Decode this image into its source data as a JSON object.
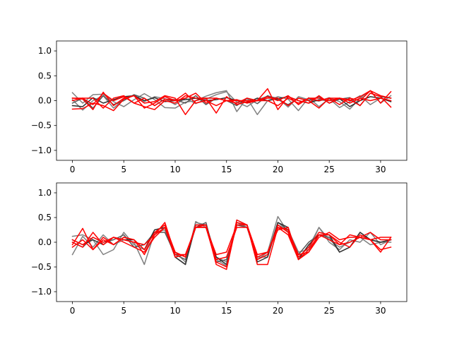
{
  "chart_data": [
    {
      "type": "line",
      "title": "",
      "xlabel": "",
      "ylabel": "",
      "xlim": [
        -1.55,
        32.55
      ],
      "ylim": [
        -1.2,
        1.2
      ],
      "xticks": [
        0,
        5,
        10,
        15,
        20,
        25,
        30
      ],
      "yticks": [
        -1.0,
        -0.5,
        0.0,
        0.5,
        1.0
      ],
      "xtick_labels": [
        "0",
        "5",
        "10",
        "15",
        "20",
        "25",
        "30"
      ],
      "ytick_labels": [
        "−1.0",
        "−0.5",
        "0.0",
        "0.5",
        "1.0"
      ],
      "grid": false,
      "x": [
        0,
        1,
        2,
        3,
        4,
        5,
        6,
        7,
        8,
        9,
        10,
        11,
        12,
        13,
        14,
        15,
        16,
        17,
        18,
        19,
        20,
        21,
        22,
        23,
        24,
        25,
        26,
        27,
        28,
        29,
        30,
        31
      ],
      "series": [
        {
          "color": "#808080",
          "values": [
            0.16,
            -0.05,
            0.12,
            0.13,
            -0.02,
            -0.12,
            0.02,
            0.14,
            0.02,
            -0.14,
            -0.15,
            -0.03,
            0.0,
            0.09,
            0.16,
            0.2,
            -0.22,
            0.05,
            -0.28,
            0.0,
            0.08,
            0.03,
            -0.2,
            0.06,
            -0.12,
            0.04,
            -0.14,
            -0.02,
            0.1,
            -0.08,
            0.05,
            -0.01
          ]
        },
        {
          "color": "#808080",
          "values": [
            0.02,
            -0.19,
            0.0,
            0.1,
            -0.15,
            0.03,
            0.11,
            -0.02,
            0.08,
            0.04,
            -0.08,
            0.05,
            -0.06,
            0.03,
            0.12,
            0.18,
            -0.03,
            -0.12,
            0.02,
            0.09,
            0.05,
            -0.13,
            0.08,
            0.02,
            -0.01,
            0.06,
            -0.02,
            -0.17,
            0.05,
            0.2,
            -0.05,
            0.1
          ]
        },
        {
          "color": "#5a5a5a",
          "values": [
            -0.05,
            0.05,
            -0.15,
            0.1,
            -0.08,
            0.0,
            0.12,
            0.05,
            -0.1,
            0.03,
            0.02,
            -0.05,
            0.1,
            -0.08,
            0.05,
            0.0,
            -0.1,
            0.05,
            -0.06,
            0.1,
            0.02,
            -0.08,
            0.05,
            0.0,
            0.08,
            -0.05,
            0.03,
            0.06,
            -0.1,
            0.15,
            0.08,
            0.05
          ]
        },
        {
          "color": "#303030",
          "values": [
            -0.1,
            -0.12,
            0.06,
            -0.05,
            0.02,
            0.08,
            0.1,
            0.0,
            0.06,
            -0.02,
            0.0,
            0.02,
            0.05,
            0.0,
            0.02,
            0.06,
            0.0,
            -0.04,
            0.05,
            0.0,
            0.04,
            0.08,
            0.0,
            -0.05,
            0.02,
            0.0,
            0.04,
            -0.12,
            0.0,
            0.08,
            0.05,
            -0.02
          ]
        },
        {
          "color": "#ff0000",
          "values": [
            0.05,
            0.03,
            -0.18,
            0.17,
            -0.1,
            0.05,
            0.1,
            -0.15,
            -0.05,
            0.08,
            0.0,
            0.15,
            -0.05,
            0.0,
            -0.1,
            0.0,
            0.02,
            -0.05,
            0.0,
            0.24,
            -0.18,
            0.08,
            0.0,
            -0.05,
            0.1,
            -0.05,
            0.05,
            0.02,
            -0.1,
            0.15,
            0.08,
            -0.13
          ]
        },
        {
          "color": "#ff0000",
          "values": [
            -0.17,
            -0.16,
            -0.05,
            -0.1,
            -0.2,
            0.03,
            0.1,
            -0.05,
            -0.02,
            0.1,
            0.05,
            -0.28,
            0.0,
            0.05,
            -0.25,
            0.08,
            -0.08,
            -0.02,
            0.0,
            0.0,
            -0.1,
            0.05,
            -0.05,
            0.05,
            0.0,
            0.05,
            -0.08,
            0.05,
            0.0,
            0.2,
            -0.05,
            0.18
          ]
        },
        {
          "color": "#ff0000",
          "values": [
            0.0,
            0.05,
            -0.08,
            0.15,
            0.0,
            0.08,
            -0.05,
            0.05,
            -0.1,
            0.03,
            0.0,
            0.05,
            0.15,
            -0.05,
            0.05,
            0.0,
            -0.05,
            0.05,
            0.0,
            0.08,
            0.0,
            0.1,
            -0.08,
            0.05,
            0.05,
            0.0,
            0.05,
            0.0,
            0.08,
            0.2,
            0.1,
            0.05
          ]
        },
        {
          "color": "#ff0000",
          "values": [
            0.05,
            0.05,
            0.05,
            -0.15,
            0.05,
            0.1,
            -0.05,
            -0.12,
            -0.18,
            0.0,
            -0.05,
            0.1,
            0.05,
            0.05,
            0.05,
            0.0,
            0.0,
            0.0,
            0.0,
            0.05,
            0.05,
            -0.1,
            0.05,
            0.0,
            -0.15,
            0.05,
            0.05,
            -0.05,
            0.05,
            0.0,
            0.05,
            0.0
          ]
        }
      ]
    },
    {
      "type": "line",
      "title": "",
      "xlabel": "",
      "ylabel": "",
      "xlim": [
        -1.55,
        32.55
      ],
      "ylim": [
        -1.2,
        1.2
      ],
      "xticks": [
        0,
        5,
        10,
        15,
        20,
        25,
        30
      ],
      "yticks": [
        -1.0,
        -0.5,
        0.0,
        0.5,
        1.0
      ],
      "xtick_labels": [
        "0",
        "5",
        "10",
        "15",
        "20",
        "25",
        "30"
      ],
      "ytick_labels": [
        "−1.0",
        "−0.5",
        "0.0",
        "0.5",
        "1.0"
      ],
      "grid": false,
      "x": [
        0,
        1,
        2,
        3,
        4,
        5,
        6,
        7,
        8,
        9,
        10,
        11,
        12,
        13,
        14,
        15,
        16,
        17,
        18,
        19,
        20,
        21,
        22,
        23,
        24,
        25,
        26,
        27,
        28,
        29,
        30,
        31
      ],
      "series": [
        {
          "color": "#808080",
          "values": [
            -0.25,
            0.12,
            -0.1,
            0.15,
            -0.05,
            0.05,
            0.0,
            -0.45,
            0.2,
            0.25,
            -0.3,
            -0.45,
            0.42,
            0.3,
            -0.35,
            -0.48,
            0.45,
            0.35,
            -0.35,
            -0.2,
            0.52,
            0.2,
            -0.3,
            -0.1,
            0.3,
            0.0,
            -0.15,
            0.05,
            0.0,
            0.2,
            -0.05,
            0.05
          ]
        },
        {
          "color": "#808080",
          "values": [
            0.12,
            0.15,
            0.05,
            -0.25,
            -0.15,
            0.2,
            -0.05,
            -0.15,
            0.1,
            0.3,
            -0.2,
            -0.4,
            0.4,
            0.35,
            -0.3,
            -0.4,
            0.4,
            0.3,
            -0.3,
            -0.3,
            0.35,
            0.25,
            -0.2,
            -0.15,
            0.3,
            0.05,
            -0.1,
            0.0,
            0.1,
            -0.05,
            0.0,
            0.0
          ]
        },
        {
          "color": "#5a5a5a",
          "values": [
            0.0,
            -0.1,
            0.1,
            0.0,
            0.05,
            0.15,
            -0.1,
            -0.05,
            0.2,
            0.2,
            -0.25,
            -0.35,
            0.3,
            0.4,
            -0.4,
            -0.35,
            0.35,
            0.3,
            -0.35,
            -0.25,
            0.4,
            0.25,
            -0.25,
            0.0,
            0.15,
            0.1,
            -0.2,
            -0.1,
            0.2,
            0.05,
            0.0,
            0.05
          ]
        },
        {
          "color": "#303030",
          "values": [
            0.05,
            -0.05,
            0.05,
            -0.05,
            0.1,
            0.05,
            0.05,
            -0.15,
            0.25,
            0.3,
            -0.3,
            -0.45,
            0.35,
            0.35,
            -0.3,
            -0.45,
            0.35,
            0.35,
            -0.4,
            -0.3,
            0.4,
            0.3,
            -0.35,
            -0.05,
            0.15,
            0.15,
            -0.2,
            -0.1,
            0.2,
            0.05,
            0.0,
            0.05
          ]
        },
        {
          "color": "#ff0000",
          "values": [
            -0.05,
            0.28,
            -0.15,
            0.1,
            -0.05,
            0.1,
            0.05,
            -0.25,
            0.15,
            0.4,
            -0.25,
            -0.25,
            0.3,
            0.35,
            -0.45,
            -0.55,
            0.4,
            0.35,
            -0.45,
            -0.45,
            0.3,
            0.15,
            -0.35,
            -0.2,
            0.15,
            0.05,
            -0.05,
            0.15,
            0.1,
            0.05,
            -0.2,
            0.1
          ]
        },
        {
          "color": "#ff0000",
          "values": [
            0.0,
            -0.1,
            0.2,
            -0.05,
            0.1,
            0.0,
            -0.1,
            -0.2,
            0.1,
            0.3,
            -0.3,
            -0.25,
            0.3,
            0.3,
            -0.4,
            -0.5,
            0.45,
            0.35,
            -0.35,
            -0.25,
            0.35,
            0.2,
            -0.3,
            -0.1,
            0.2,
            0.15,
            -0.05,
            0.0,
            0.1,
            0.2,
            0.05,
            0.05
          ]
        },
        {
          "color": "#ff0000",
          "values": [
            -0.1,
            0.05,
            -0.15,
            0.05,
            -0.05,
            0.1,
            0.05,
            -0.15,
            0.2,
            0.35,
            -0.2,
            -0.3,
            0.35,
            0.35,
            -0.35,
            -0.3,
            0.3,
            0.3,
            -0.3,
            -0.2,
            0.25,
            0.3,
            -0.35,
            -0.15,
            0.15,
            0.15,
            0.0,
            -0.1,
            0.15,
            0.05,
            -0.15,
            -0.1
          ]
        },
        {
          "color": "#ff0000",
          "values": [
            0.05,
            -0.05,
            0.1,
            0.0,
            0.1,
            0.05,
            0.0,
            -0.05,
            0.15,
            0.3,
            -0.2,
            -0.3,
            0.3,
            0.3,
            -0.25,
            -0.2,
            0.35,
            0.35,
            -0.25,
            -0.2,
            0.3,
            0.25,
            -0.25,
            -0.2,
            0.1,
            0.2,
            0.05,
            0.1,
            0.1,
            0.05,
            0.1,
            0.1
          ]
        }
      ]
    }
  ]
}
